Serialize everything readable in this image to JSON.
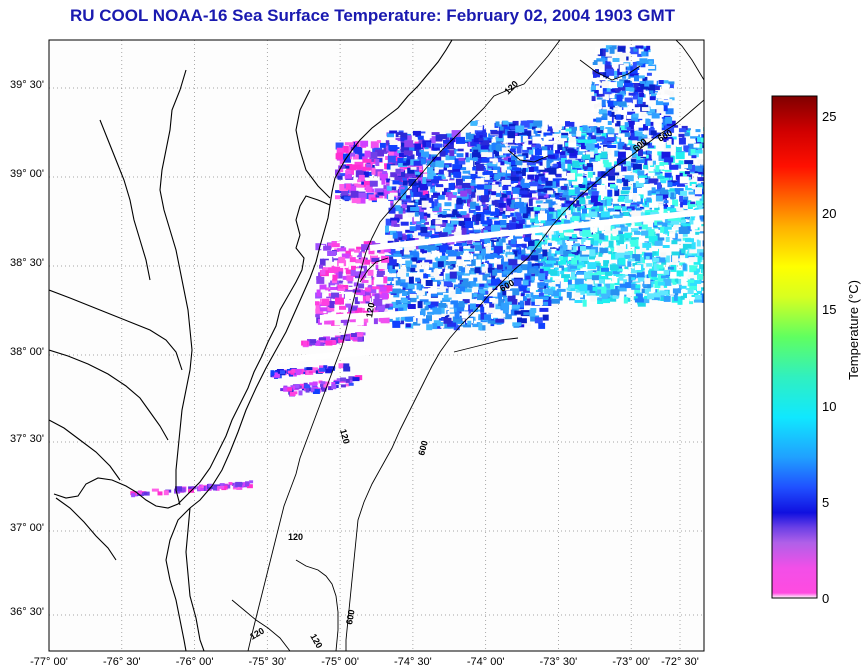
{
  "title": "RU COOL  NOAA-16  Sea Surface Temperature:  February 02, 2004 1903 GMT",
  "map": {
    "lon_range": [
      -77.0,
      -72.5
    ],
    "lat_range": [
      36.3,
      39.8
    ],
    "lon_ticks": [
      "-77° 00'",
      "-76° 30'",
      "-76° 00'",
      "-75° 30'",
      "-75° 00'",
      "-74° 30'",
      "-74° 00'",
      "-73° 30'",
      "-73° 00'",
      "-72° 30'"
    ],
    "lat_ticks": [
      "36° 30'",
      "37° 00'",
      "37° 30'",
      "38° 00'",
      "38° 30'",
      "39° 00'",
      "39° 30'"
    ],
    "contour_labels": [
      "120",
      "120",
      "120",
      "120",
      "120",
      "120",
      "600",
      "600",
      "600",
      "600",
      "600"
    ],
    "grid": "dotted"
  },
  "colorbar": {
    "label": "Temperature (°C)",
    "range": [
      0,
      26
    ],
    "ticks": [
      "0",
      "5",
      "10",
      "15",
      "20",
      "25"
    ]
  }
}
